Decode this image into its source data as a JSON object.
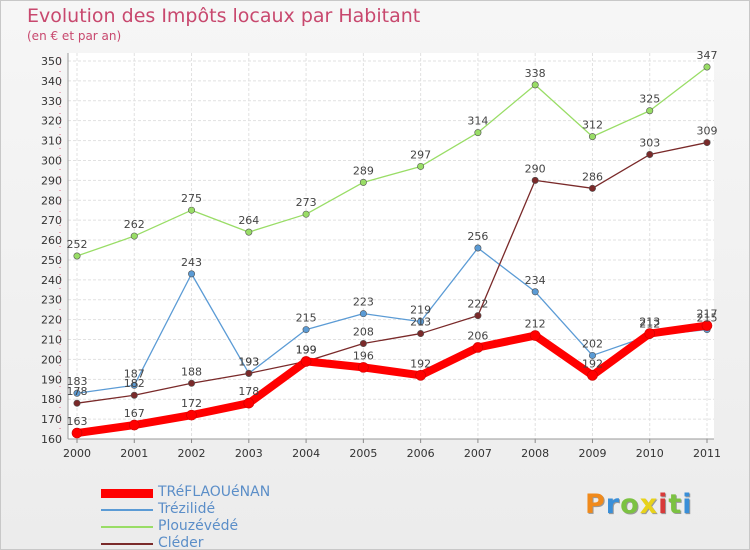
{
  "title": "Evolution des Impôts locaux par Habitant",
  "subtitle": "(en € et par an)",
  "logo": {
    "text": "Proxiti",
    "colors": [
      "#f08a1c",
      "#3a8fd8",
      "#7cc242",
      "#e8d21a",
      "#d83a3a",
      "#7cc242",
      "#3a8fd8"
    ]
  },
  "chart_data": {
    "type": "line",
    "x": [
      "2000",
      "2001",
      "2002",
      "2003",
      "2004",
      "2005",
      "2006",
      "2007",
      "2008",
      "2009",
      "2010",
      "2011"
    ],
    "ylim": [
      160,
      350
    ],
    "yticks": [
      160,
      170,
      180,
      190,
      200,
      210,
      220,
      230,
      240,
      250,
      260,
      270,
      280,
      290,
      300,
      310,
      320,
      330,
      340,
      350
    ],
    "grid": true,
    "legend_position": "bottom-left",
    "series": [
      {
        "name": "TRéFLAOUéNAN",
        "values": [
          163,
          167,
          172,
          178,
          199,
          196,
          192,
          206,
          212,
          192,
          213,
          217
        ],
        "color": "#ff0000",
        "emphasis": true
      },
      {
        "name": "Trézilidé",
        "values": [
          183,
          187,
          243,
          193,
          215,
          223,
          219,
          256,
          234,
          202,
          212,
          215
        ],
        "color": "#5b9bd5",
        "emphasis": false
      },
      {
        "name": "Plouzévédé",
        "values": [
          252,
          262,
          275,
          264,
          273,
          289,
          297,
          314,
          338,
          312,
          325,
          347
        ],
        "color": "#99dd66",
        "emphasis": false
      },
      {
        "name": "Cléder",
        "values": [
          178,
          182,
          188,
          193,
          199,
          208,
          213,
          222,
          290,
          286,
          303,
          309
        ],
        "color": "#7a2a2a",
        "emphasis": false
      }
    ],
    "label_order": [
      2,
      3,
      1,
      0
    ]
  }
}
